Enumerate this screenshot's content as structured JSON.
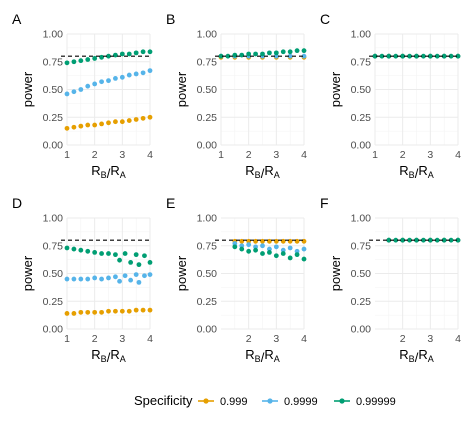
{
  "colors": {
    "0.999": "#E69F00",
    "0.9999": "#56B4E9",
    "0.99999": "#009E73",
    "reference": "#000000",
    "grid": "#ebebeb",
    "text": "#000000",
    "tick_text": "#4d4d4d"
  },
  "legend": {
    "title": "Specificity",
    "entries": [
      "0.999",
      "0.9999",
      "0.99999"
    ]
  },
  "chart_data": [
    {
      "panel": "A",
      "type": "scatter",
      "xlabel": "RB/RA",
      "ylabel": "power",
      "xlim": [
        1,
        4
      ],
      "ylim": [
        0,
        1
      ],
      "xticks": [
        "1",
        "2",
        "3",
        "4"
      ],
      "yticks": [
        "0.00",
        "0.25",
        "0.50",
        "0.75",
        "1.00"
      ],
      "reference_y": 0.8,
      "series": [
        {
          "name": "0.999",
          "x": [
            1.0,
            1.25,
            1.5,
            1.75,
            2.0,
            2.25,
            2.5,
            2.75,
            3.0,
            3.25,
            3.5,
            3.75,
            4.0
          ],
          "y": [
            0.15,
            0.16,
            0.17,
            0.18,
            0.18,
            0.19,
            0.2,
            0.21,
            0.21,
            0.22,
            0.23,
            0.24,
            0.25
          ]
        },
        {
          "name": "0.9999",
          "x": [
            1.0,
            1.25,
            1.5,
            1.75,
            2.0,
            2.25,
            2.5,
            2.75,
            3.0,
            3.25,
            3.5,
            3.75,
            4.0
          ],
          "y": [
            0.46,
            0.48,
            0.5,
            0.53,
            0.55,
            0.57,
            0.58,
            0.6,
            0.61,
            0.63,
            0.64,
            0.65,
            0.67
          ]
        },
        {
          "name": "0.99999",
          "x": [
            1.0,
            1.25,
            1.5,
            1.75,
            2.0,
            2.25,
            2.5,
            2.75,
            3.0,
            3.25,
            3.5,
            3.75,
            4.0
          ],
          "y": [
            0.74,
            0.75,
            0.76,
            0.77,
            0.78,
            0.79,
            0.8,
            0.81,
            0.82,
            0.82,
            0.83,
            0.84,
            0.84
          ]
        }
      ]
    },
    {
      "panel": "B",
      "type": "scatter",
      "xlabel": "RB/RA",
      "ylabel": "power",
      "xlim": [
        1,
        4
      ],
      "ylim": [
        0,
        1
      ],
      "xticks": [
        "1",
        "2",
        "3",
        "4"
      ],
      "yticks": [
        "0.00",
        "0.25",
        "0.50",
        "0.75",
        "1.00"
      ],
      "reference_y": 0.8,
      "series": [
        {
          "name": "0.999",
          "x": [
            1.0,
            1.5,
            2.0,
            2.5,
            3.0,
            3.5,
            4.0
          ],
          "y": [
            0.79,
            0.79,
            0.79,
            0.79,
            0.79,
            0.79,
            0.79
          ]
        },
        {
          "name": "0.9999",
          "x": [
            1.0,
            1.5,
            2.0,
            2.5,
            3.0,
            3.5,
            4.0
          ],
          "y": [
            0.8,
            0.8,
            0.8,
            0.8,
            0.8,
            0.8,
            0.8
          ]
        },
        {
          "name": "0.99999",
          "x": [
            1.0,
            1.25,
            1.5,
            1.75,
            2.0,
            2.25,
            2.5,
            2.75,
            3.0,
            3.25,
            3.5,
            3.75,
            4.0
          ],
          "y": [
            0.8,
            0.8,
            0.81,
            0.81,
            0.82,
            0.82,
            0.82,
            0.83,
            0.83,
            0.84,
            0.84,
            0.85,
            0.85
          ]
        }
      ]
    },
    {
      "panel": "C",
      "type": "scatter",
      "xlabel": "RB/RA",
      "ylabel": "power",
      "xlim": [
        1,
        4
      ],
      "ylim": [
        0,
        1
      ],
      "xticks": [
        "1",
        "2",
        "3",
        "4"
      ],
      "yticks": [
        "0.00",
        "0.25",
        "0.50",
        "0.75",
        "1.00"
      ],
      "reference_y": 0.8,
      "series": [
        {
          "name": "0.999",
          "x": [
            1.0,
            1.5,
            2.0,
            2.5,
            3.0,
            3.5,
            4.0
          ],
          "y": [
            0.8,
            0.8,
            0.8,
            0.8,
            0.8,
            0.8,
            0.8
          ]
        },
        {
          "name": "0.9999",
          "x": [
            1.0,
            1.5,
            2.0,
            2.5,
            3.0,
            3.5,
            4.0
          ],
          "y": [
            0.8,
            0.8,
            0.8,
            0.8,
            0.8,
            0.8,
            0.8
          ]
        },
        {
          "name": "0.99999",
          "x": [
            1.0,
            1.25,
            1.5,
            1.75,
            2.0,
            2.25,
            2.5,
            2.75,
            3.0,
            3.25,
            3.5,
            3.75,
            4.0
          ],
          "y": [
            0.8,
            0.8,
            0.8,
            0.8,
            0.8,
            0.8,
            0.8,
            0.8,
            0.8,
            0.8,
            0.8,
            0.8,
            0.8
          ]
        }
      ]
    },
    {
      "panel": "D",
      "type": "scatter",
      "xlabel": "RB/RA",
      "ylabel": "power",
      "xlim": [
        1,
        4
      ],
      "ylim": [
        0,
        1
      ],
      "xticks": [
        "1",
        "2",
        "3",
        "4"
      ],
      "yticks": [
        "0.00",
        "0.25",
        "0.50",
        "0.75",
        "1.00"
      ],
      "reference_y": 0.8,
      "series": [
        {
          "name": "0.999",
          "x": [
            1.0,
            1.25,
            1.5,
            1.75,
            2.0,
            2.25,
            2.5,
            2.75,
            3.0,
            3.25,
            3.5,
            3.75,
            4.0
          ],
          "y": [
            0.14,
            0.14,
            0.15,
            0.15,
            0.15,
            0.15,
            0.16,
            0.16,
            0.16,
            0.16,
            0.17,
            0.17,
            0.17
          ]
        },
        {
          "name": "0.9999",
          "x": [
            1.0,
            1.25,
            1.5,
            1.75,
            2.0,
            2.25,
            2.5,
            2.75,
            2.9,
            3.1,
            3.3,
            3.5,
            3.6,
            3.8,
            4.0
          ],
          "y": [
            0.45,
            0.45,
            0.45,
            0.45,
            0.46,
            0.45,
            0.46,
            0.47,
            0.43,
            0.48,
            0.44,
            0.49,
            0.42,
            0.48,
            0.49
          ]
        },
        {
          "name": "0.99999",
          "x": [
            1.0,
            1.25,
            1.5,
            1.75,
            2.0,
            2.25,
            2.5,
            2.75,
            2.9,
            3.1,
            3.3,
            3.5,
            3.6,
            3.8,
            4.0
          ],
          "y": [
            0.73,
            0.72,
            0.71,
            0.7,
            0.69,
            0.68,
            0.68,
            0.67,
            0.62,
            0.68,
            0.6,
            0.67,
            0.58,
            0.66,
            0.6
          ]
        }
      ]
    },
    {
      "panel": "E",
      "type": "scatter",
      "xlabel": "RB/RA",
      "ylabel": "power",
      "xlim": [
        1,
        4
      ],
      "ylim": [
        0,
        1
      ],
      "xticks": [
        "2",
        "3",
        "4"
      ],
      "yticks": [
        "0.00",
        "0.25",
        "0.50",
        "0.75",
        "1.00"
      ],
      "reference_y": 0.8,
      "series": [
        {
          "name": "0.999",
          "x": [
            1.5,
            1.75,
            2.0,
            2.25,
            2.5,
            2.75,
            3.0,
            3.25,
            3.5,
            3.75,
            4.0
          ],
          "y": [
            0.79,
            0.79,
            0.79,
            0.79,
            0.79,
            0.79,
            0.79,
            0.79,
            0.79,
            0.79,
            0.79
          ]
        },
        {
          "name": "0.9999",
          "x": [
            1.5,
            1.75,
            2.0,
            2.25,
            2.5,
            2.75,
            3.0,
            3.25,
            3.5,
            3.75,
            4.0
          ],
          "y": [
            0.77,
            0.75,
            0.76,
            0.74,
            0.75,
            0.72,
            0.74,
            0.71,
            0.73,
            0.7,
            0.72
          ]
        },
        {
          "name": "0.99999",
          "x": [
            1.5,
            1.75,
            2.0,
            2.25,
            2.5,
            2.75,
            3.0,
            3.25,
            3.5,
            3.75,
            4.0
          ],
          "y": [
            0.74,
            0.72,
            0.7,
            0.71,
            0.68,
            0.69,
            0.66,
            0.68,
            0.64,
            0.67,
            0.63
          ]
        }
      ]
    },
    {
      "panel": "F",
      "type": "scatter",
      "xlabel": "RB/RA",
      "ylabel": "power",
      "xlim": [
        1,
        4
      ],
      "ylim": [
        0,
        1
      ],
      "xticks": [
        "2",
        "3",
        "4"
      ],
      "yticks": [
        "0.00",
        "0.25",
        "0.50",
        "0.75",
        "1.00"
      ],
      "reference_y": 0.8,
      "series": [
        {
          "name": "0.999",
          "x": [
            1.5,
            2.0,
            2.5,
            3.0,
            3.5,
            4.0
          ],
          "y": [
            0.8,
            0.8,
            0.8,
            0.8,
            0.8,
            0.8
          ]
        },
        {
          "name": "0.9999",
          "x": [
            1.5,
            2.0,
            2.5,
            3.0,
            3.5,
            4.0
          ],
          "y": [
            0.8,
            0.8,
            0.8,
            0.8,
            0.8,
            0.8
          ]
        },
        {
          "name": "0.99999",
          "x": [
            1.5,
            1.75,
            2.0,
            2.25,
            2.5,
            2.75,
            3.0,
            3.25,
            3.5,
            3.75,
            4.0
          ],
          "y": [
            0.8,
            0.8,
            0.8,
            0.8,
            0.8,
            0.8,
            0.8,
            0.8,
            0.8,
            0.8,
            0.8
          ]
        }
      ]
    }
  ]
}
